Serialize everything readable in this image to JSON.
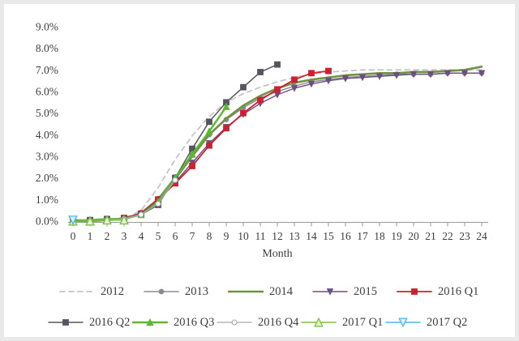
{
  "page": {
    "background": "#ffffff",
    "frame_color": "#e9e9ea",
    "text_color": "#3d3d3d",
    "axis_color": "#9a9a9a"
  },
  "chart_data": {
    "type": "line",
    "title": "",
    "xlabel": "Month",
    "ylabel": "",
    "xlim": [
      0,
      24
    ],
    "ylim": [
      0,
      9
    ],
    "grid": false,
    "legend_position": "bottom-two-rows",
    "x_tick_labels": [
      "0",
      "1",
      "2",
      "3",
      "4",
      "5",
      "6",
      "7",
      "8",
      "9",
      "10",
      "11",
      "12",
      "13",
      "14",
      "15",
      "16",
      "17",
      "18",
      "19",
      "20",
      "21",
      "22",
      "23",
      "24"
    ],
    "y_tick_labels": [
      "0.0%",
      "1.0%",
      "2.0%",
      "3.0%",
      "4.0%",
      "5.0%",
      "6.0%",
      "7.0%",
      "8.0%",
      "9.0%"
    ],
    "series": [
      {
        "name": "2012",
        "color": "#c8c3ce",
        "dash": "6 5",
        "width": 1.8,
        "marker": "none",
        "marker_size": 0,
        "fill": "none",
        "values": [
          0,
          0,
          0.05,
          0.1,
          0.5,
          1.55,
          2.85,
          3.95,
          4.85,
          5.5,
          5.9,
          6.2,
          6.45,
          6.65,
          6.8,
          6.9,
          6.95,
          7.0,
          7.0,
          7.0,
          7.0,
          7.0,
          7.0,
          7.0,
          7.0
        ]
      },
      {
        "name": "2013",
        "color": "#8b8b95",
        "dash": "",
        "width": 1.5,
        "marker": "circle",
        "marker_size": 2.8,
        "fill": "#8b8b95",
        "values": [
          0,
          0,
          0.05,
          0.1,
          0.4,
          1.05,
          2.05,
          3.05,
          4.0,
          4.7,
          5.25,
          5.7,
          6.0,
          6.25,
          6.45,
          6.55,
          6.65,
          6.7,
          6.75,
          6.8,
          6.8,
          6.8,
          6.85,
          6.85,
          6.85
        ]
      },
      {
        "name": "2014",
        "color": "#6f9440",
        "dash": "",
        "width": 2.6,
        "marker": "none",
        "marker_size": 0,
        "fill": "none",
        "values": [
          0,
          0,
          0.05,
          0.1,
          0.35,
          0.95,
          1.95,
          3.0,
          4.0,
          4.75,
          5.35,
          5.8,
          6.15,
          6.4,
          6.55,
          6.65,
          6.75,
          6.8,
          6.85,
          6.85,
          6.9,
          6.9,
          6.95,
          7.0,
          7.15
        ]
      },
      {
        "name": "2015",
        "color": "#6d4f7d",
        "dash": "",
        "width": 1.4,
        "marker": "tri-down",
        "marker_size": 3.2,
        "fill": "#6d4f7d",
        "values": [
          0,
          0,
          0.05,
          0.1,
          0.3,
          0.9,
          1.8,
          2.7,
          3.6,
          4.35,
          4.95,
          5.45,
          5.85,
          6.15,
          6.35,
          6.5,
          6.6,
          6.65,
          6.7,
          6.75,
          6.8,
          6.8,
          6.85,
          6.85,
          6.85
        ]
      },
      {
        "name": "2016 Q1",
        "color": "#cd2030",
        "dash": "",
        "width": 1.8,
        "marker": "square",
        "marker_size": 3.4,
        "fill": "#cd2030",
        "values": [
          0,
          0,
          0.05,
          0.15,
          0.35,
          1.0,
          1.75,
          2.55,
          3.5,
          4.3,
          5.0,
          5.6,
          6.1,
          6.55,
          6.85,
          6.95
        ]
      },
      {
        "name": "2016 Q2",
        "color": "#55555e",
        "dash": "",
        "width": 1.5,
        "marker": "square",
        "marker_size": 3.4,
        "fill": "#55555e",
        "values": [
          0.05,
          0.05,
          0.1,
          0.1,
          0.3,
          0.75,
          2.0,
          3.35,
          4.6,
          5.5,
          6.2,
          6.9,
          7.25
        ]
      },
      {
        "name": "2016 Q3",
        "color": "#5cb833",
        "dash": "",
        "width": 2.4,
        "marker": "tri-up",
        "marker_size": 3.6,
        "fill": "#5cb833",
        "values": [
          0,
          0.05,
          0.1,
          0.1,
          0.3,
          0.9,
          2.0,
          3.1,
          4.15,
          5.3
        ]
      },
      {
        "name": "2016 Q4",
        "color": "#a8a8b0",
        "dash": "",
        "width": 1.3,
        "marker": "circle-open",
        "marker_size": 3.0,
        "fill": "#ffffff",
        "values": [
          0,
          0,
          0.05,
          0.1,
          0.3,
          0.8,
          1.9
        ]
      },
      {
        "name": "2017 Q1",
        "color": "#7ac143",
        "dash": "",
        "width": 1.4,
        "marker": "tri-up-open",
        "marker_size": 4.8,
        "fill": "#e4f2cf",
        "values": [
          0,
          0,
          0.05,
          0.05
        ]
      },
      {
        "name": "2017 Q2",
        "color": "#4db8e8",
        "dash": "",
        "width": 1.4,
        "marker": "tri-down-open",
        "marker_size": 4.8,
        "fill": "#d7f0fb",
        "values": [
          0.05
        ]
      }
    ]
  }
}
